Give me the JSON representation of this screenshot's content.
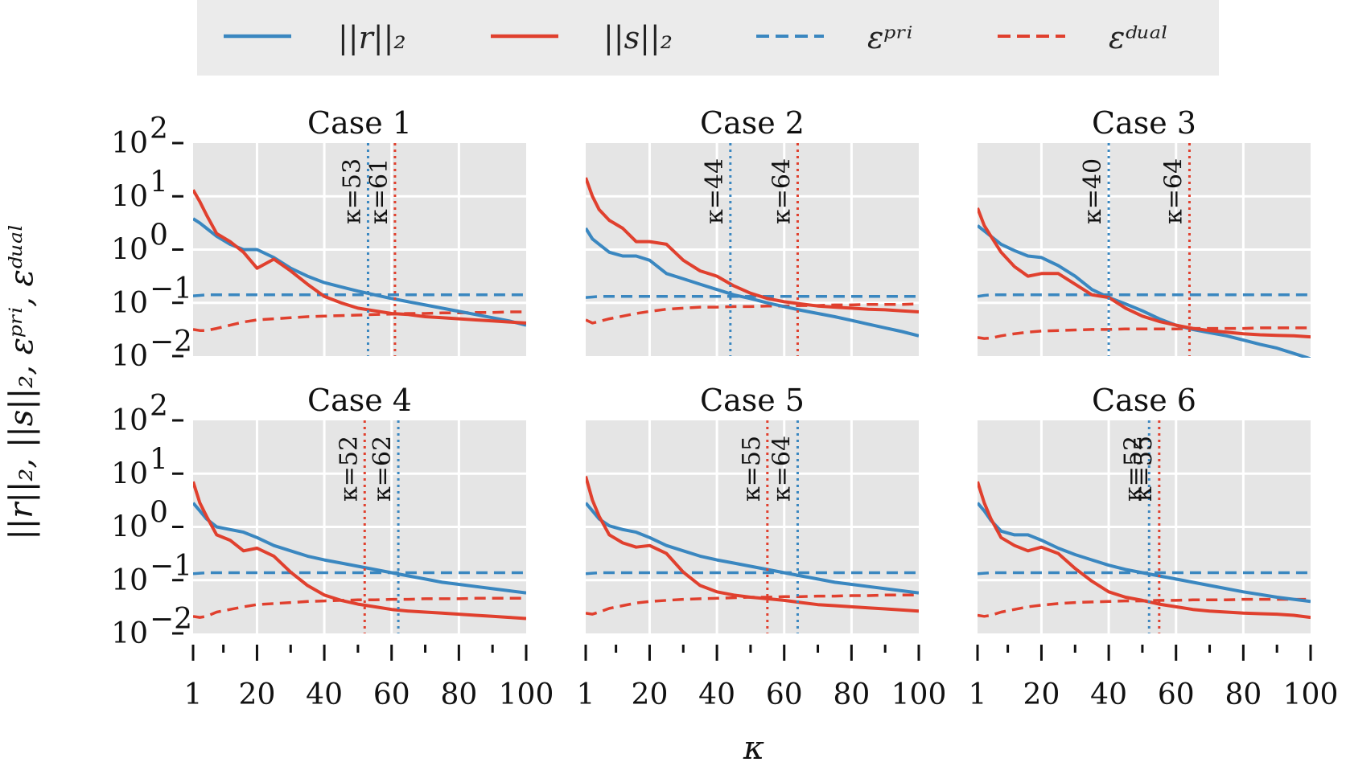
{
  "chart_data": {
    "type": "line",
    "legend": {
      "placement": "top",
      "entries": [
        {
          "label": "||r||₂",
          "color": "#3a87c0",
          "dash": "solid"
        },
        {
          "label": "||s||₂",
          "color": "#e0402e",
          "dash": "solid"
        },
        {
          "label": "εᵖʳⁱ",
          "color": "#3a87c0",
          "dash": "dashed"
        },
        {
          "label": "εᵈᵘᵃˡ",
          "color": "#e0402e",
          "dash": "dashed"
        }
      ]
    },
    "xlabel": "κ",
    "ylabel": "||r||₂, ||s||₂, εᵖʳⁱ, εᵈᵘᵃˡ",
    "xlim": [
      1,
      100
    ],
    "ylim_log10": [
      -2,
      2
    ],
    "yscale": "log",
    "grid": true,
    "x_ticks": [
      "1",
      "20",
      "40",
      "60",
      "80",
      "100"
    ],
    "x_tick_values": [
      1,
      20,
      40,
      60,
      80,
      100
    ],
    "y_ticks": [
      "10",
      "10",
      "10",
      "10",
      "10"
    ],
    "y_tick_exponents": [
      "2",
      "1",
      "0",
      "−1",
      "−2"
    ],
    "y_tick_log10": [
      2,
      1,
      0,
      -1,
      -2
    ],
    "colors": {
      "blue": "#3a87c0",
      "red": "#e0402e",
      "panel_bg": "#e5e5e5",
      "legend_bg": "#ebebeb"
    },
    "panels": [
      {
        "title": "Case 1",
        "x": [
          1,
          3,
          5,
          8,
          12,
          16,
          20,
          25,
          30,
          35,
          40,
          45,
          50,
          55,
          60,
          65,
          70,
          75,
          80,
          85,
          90,
          95,
          100
        ],
        "r": [
          0.58,
          0.5,
          0.4,
          0.25,
          0.1,
          0.0,
          0.0,
          -0.15,
          -0.35,
          -0.5,
          -0.62,
          -0.7,
          -0.78,
          -0.85,
          -0.92,
          -0.98,
          -1.04,
          -1.1,
          -1.16,
          -1.22,
          -1.28,
          -1.34,
          -1.42
        ],
        "s": [
          1.12,
          0.9,
          0.65,
          0.3,
          0.15,
          -0.05,
          -0.35,
          -0.18,
          -0.4,
          -0.65,
          -0.88,
          -1.0,
          -1.1,
          -1.15,
          -1.2,
          -1.22,
          -1.26,
          -1.28,
          -1.3,
          -1.32,
          -1.34,
          -1.36,
          -1.38
        ],
        "eps_pri": [
          -0.87,
          -0.86,
          -0.85,
          -0.85,
          -0.85,
          -0.85,
          -0.85,
          -0.85,
          -0.85,
          -0.85,
          -0.85,
          -0.85,
          -0.85,
          -0.85,
          -0.85,
          -0.85,
          -0.85,
          -0.85,
          -0.85,
          -0.85,
          -0.85,
          -0.85,
          -0.85
        ],
        "eps_dual": [
          -1.5,
          -1.52,
          -1.52,
          -1.48,
          -1.42,
          -1.36,
          -1.32,
          -1.3,
          -1.28,
          -1.26,
          -1.25,
          -1.24,
          -1.23,
          -1.22,
          -1.21,
          -1.2,
          -1.2,
          -1.19,
          -1.19,
          -1.18,
          -1.18,
          -1.17,
          -1.17
        ],
        "vlines": [
          {
            "kappa": 53,
            "label": "κ=53",
            "color": "#3a87c0"
          },
          {
            "kappa": 61,
            "label": "κ=61",
            "color": "#e0402e"
          }
        ]
      },
      {
        "title": "Case 2",
        "x": [
          1,
          3,
          5,
          8,
          12,
          16,
          20,
          25,
          30,
          35,
          40,
          45,
          50,
          55,
          60,
          65,
          70,
          75,
          80,
          85,
          90,
          95,
          100
        ],
        "r": [
          0.4,
          0.2,
          0.1,
          -0.05,
          -0.12,
          -0.12,
          -0.2,
          -0.45,
          -0.55,
          -0.65,
          -0.75,
          -0.85,
          -0.92,
          -1.0,
          -1.07,
          -1.14,
          -1.2,
          -1.26,
          -1.33,
          -1.4,
          -1.47,
          -1.54,
          -1.62
        ],
        "s": [
          1.35,
          1.0,
          0.75,
          0.55,
          0.4,
          0.15,
          0.15,
          0.1,
          -0.2,
          -0.4,
          -0.5,
          -0.68,
          -0.82,
          -0.92,
          -0.98,
          -1.02,
          -1.06,
          -1.08,
          -1.1,
          -1.12,
          -1.13,
          -1.15,
          -1.17
        ],
        "eps_pri": [
          -0.9,
          -0.89,
          -0.88,
          -0.88,
          -0.88,
          -0.88,
          -0.88,
          -0.88,
          -0.88,
          -0.88,
          -0.88,
          -0.88,
          -0.88,
          -0.88,
          -0.88,
          -0.88,
          -0.88,
          -0.88,
          -0.88,
          -0.88,
          -0.88,
          -0.88,
          -0.88
        ],
        "eps_dual": [
          -1.32,
          -1.38,
          -1.35,
          -1.3,
          -1.25,
          -1.2,
          -1.16,
          -1.12,
          -1.1,
          -1.08,
          -1.08,
          -1.07,
          -1.07,
          -1.06,
          -1.06,
          -1.05,
          -1.05,
          -1.04,
          -1.04,
          -1.03,
          -1.03,
          -1.03,
          -1.02
        ],
        "vlines": [
          {
            "kappa": 44,
            "label": "κ=44",
            "color": "#3a87c0"
          },
          {
            "kappa": 64,
            "label": "κ=64",
            "color": "#e0402e"
          }
        ]
      },
      {
        "title": "Case 3",
        "x": [
          1,
          3,
          5,
          8,
          12,
          16,
          20,
          25,
          30,
          35,
          40,
          45,
          50,
          55,
          60,
          65,
          70,
          75,
          80,
          85,
          90,
          95,
          100
        ],
        "r": [
          0.45,
          0.35,
          0.25,
          0.1,
          -0.02,
          -0.12,
          -0.15,
          -0.3,
          -0.5,
          -0.75,
          -0.9,
          -1.02,
          -1.15,
          -1.3,
          -1.42,
          -1.5,
          -1.56,
          -1.62,
          -1.7,
          -1.78,
          -1.85,
          -1.95,
          -2.05
        ],
        "s": [
          0.78,
          0.45,
          0.25,
          -0.05,
          -0.32,
          -0.5,
          -0.45,
          -0.45,
          -0.65,
          -0.85,
          -0.9,
          -1.1,
          -1.25,
          -1.35,
          -1.42,
          -1.48,
          -1.52,
          -1.55,
          -1.58,
          -1.6,
          -1.61,
          -1.62,
          -1.64
        ],
        "eps_pri": [
          -0.88,
          -0.86,
          -0.85,
          -0.85,
          -0.85,
          -0.85,
          -0.85,
          -0.85,
          -0.85,
          -0.85,
          -0.85,
          -0.85,
          -0.85,
          -0.85,
          -0.85,
          -0.85,
          -0.85,
          -0.85,
          -0.85,
          -0.85,
          -0.85,
          -0.85,
          -0.85
        ],
        "eps_dual": [
          -1.65,
          -1.67,
          -1.66,
          -1.62,
          -1.58,
          -1.55,
          -1.53,
          -1.52,
          -1.51,
          -1.5,
          -1.5,
          -1.49,
          -1.49,
          -1.49,
          -1.49,
          -1.48,
          -1.48,
          -1.48,
          -1.48,
          -1.47,
          -1.47,
          -1.47,
          -1.47
        ],
        "vlines": [
          {
            "kappa": 40,
            "label": "κ=40",
            "color": "#3a87c0"
          },
          {
            "kappa": 64,
            "label": "κ=64",
            "color": "#e0402e"
          }
        ]
      },
      {
        "title": "Case 4",
        "x": [
          1,
          3,
          5,
          8,
          12,
          16,
          20,
          25,
          30,
          35,
          40,
          45,
          50,
          55,
          60,
          65,
          70,
          75,
          80,
          85,
          90,
          95,
          100
        ],
        "r": [
          0.45,
          0.3,
          0.15,
          0.0,
          -0.05,
          -0.1,
          -0.2,
          -0.35,
          -0.45,
          -0.55,
          -0.62,
          -0.68,
          -0.74,
          -0.8,
          -0.86,
          -0.92,
          -0.98,
          -1.04,
          -1.08,
          -1.12,
          -1.16,
          -1.2,
          -1.24
        ],
        "s": [
          0.85,
          0.45,
          0.2,
          -0.15,
          -0.25,
          -0.45,
          -0.4,
          -0.55,
          -0.85,
          -1.1,
          -1.28,
          -1.38,
          -1.45,
          -1.5,
          -1.55,
          -1.58,
          -1.6,
          -1.62,
          -1.64,
          -1.66,
          -1.68,
          -1.7,
          -1.72
        ],
        "eps_pri": [
          -0.88,
          -0.87,
          -0.86,
          -0.86,
          -0.86,
          -0.86,
          -0.86,
          -0.86,
          -0.86,
          -0.86,
          -0.86,
          -0.86,
          -0.86,
          -0.86,
          -0.86,
          -0.86,
          -0.86,
          -0.86,
          -0.86,
          -0.86,
          -0.86,
          -0.86,
          -0.86
        ],
        "eps_dual": [
          -1.68,
          -1.7,
          -1.68,
          -1.6,
          -1.55,
          -1.5,
          -1.46,
          -1.44,
          -1.42,
          -1.4,
          -1.39,
          -1.38,
          -1.37,
          -1.37,
          -1.36,
          -1.36,
          -1.35,
          -1.35,
          -1.35,
          -1.34,
          -1.34,
          -1.34,
          -1.34
        ],
        "vlines": [
          {
            "kappa": 52,
            "label": "κ=52",
            "color": "#e0402e"
          },
          {
            "kappa": 62,
            "label": "κ=62",
            "color": "#3a87c0"
          }
        ]
      },
      {
        "title": "Case 5",
        "x": [
          1,
          3,
          5,
          8,
          12,
          16,
          20,
          25,
          30,
          35,
          40,
          45,
          50,
          55,
          60,
          65,
          70,
          75,
          80,
          85,
          90,
          95,
          100
        ],
        "r": [
          0.45,
          0.3,
          0.15,
          0.02,
          -0.05,
          -0.1,
          -0.2,
          -0.35,
          -0.45,
          -0.55,
          -0.62,
          -0.68,
          -0.74,
          -0.8,
          -0.86,
          -0.92,
          -0.98,
          -1.04,
          -1.08,
          -1.12,
          -1.16,
          -1.2,
          -1.24
        ],
        "s": [
          0.95,
          0.5,
          0.2,
          -0.15,
          -0.3,
          -0.38,
          -0.35,
          -0.5,
          -0.85,
          -1.1,
          -1.22,
          -1.28,
          -1.32,
          -1.35,
          -1.38,
          -1.42,
          -1.46,
          -1.48,
          -1.5,
          -1.52,
          -1.54,
          -1.56,
          -1.58
        ],
        "eps_pri": [
          -0.88,
          -0.87,
          -0.86,
          -0.86,
          -0.86,
          -0.86,
          -0.86,
          -0.86,
          -0.86,
          -0.86,
          -0.86,
          -0.86,
          -0.86,
          -0.86,
          -0.86,
          -0.86,
          -0.86,
          -0.86,
          -0.86,
          -0.86,
          -0.86,
          -0.86,
          -0.86
        ],
        "eps_dual": [
          -1.62,
          -1.64,
          -1.6,
          -1.53,
          -1.48,
          -1.43,
          -1.4,
          -1.38,
          -1.36,
          -1.35,
          -1.34,
          -1.33,
          -1.32,
          -1.32,
          -1.31,
          -1.31,
          -1.3,
          -1.3,
          -1.29,
          -1.29,
          -1.28,
          -1.28,
          -1.28
        ],
        "vlines": [
          {
            "kappa": 55,
            "label": "κ=55",
            "color": "#e0402e"
          },
          {
            "kappa": 64,
            "label": "κ=64",
            "color": "#3a87c0"
          }
        ]
      },
      {
        "title": "Case 6",
        "x": [
          1,
          3,
          5,
          8,
          12,
          16,
          20,
          25,
          30,
          35,
          40,
          45,
          50,
          55,
          60,
          65,
          70,
          75,
          80,
          85,
          90,
          95,
          100
        ],
        "r": [
          0.45,
          0.3,
          0.12,
          -0.08,
          -0.15,
          -0.15,
          -0.25,
          -0.4,
          -0.52,
          -0.62,
          -0.72,
          -0.8,
          -0.86,
          -0.92,
          -0.98,
          -1.04,
          -1.1,
          -1.16,
          -1.22,
          -1.27,
          -1.32,
          -1.36,
          -1.4
        ],
        "s": [
          0.85,
          0.45,
          0.15,
          -0.2,
          -0.35,
          -0.45,
          -0.38,
          -0.5,
          -0.78,
          -1.02,
          -1.22,
          -1.32,
          -1.38,
          -1.45,
          -1.5,
          -1.55,
          -1.58,
          -1.6,
          -1.62,
          -1.63,
          -1.64,
          -1.66,
          -1.7
        ],
        "eps_pri": [
          -0.88,
          -0.87,
          -0.86,
          -0.86,
          -0.86,
          -0.86,
          -0.86,
          -0.86,
          -0.86,
          -0.86,
          -0.86,
          -0.86,
          -0.86,
          -0.86,
          -0.86,
          -0.86,
          -0.86,
          -0.86,
          -0.86,
          -0.86,
          -0.86,
          -0.86,
          -0.86
        ],
        "eps_dual": [
          -1.66,
          -1.68,
          -1.66,
          -1.6,
          -1.55,
          -1.5,
          -1.47,
          -1.44,
          -1.42,
          -1.41,
          -1.4,
          -1.39,
          -1.39,
          -1.38,
          -1.38,
          -1.37,
          -1.37,
          -1.37,
          -1.36,
          -1.36,
          -1.36,
          -1.36,
          -1.36
        ],
        "vlines": [
          {
            "kappa": 52,
            "label": "κ=52",
            "color": "#3a87c0"
          },
          {
            "kappa": 55,
            "label": "κ=55",
            "color": "#e0402e"
          }
        ]
      }
    ]
  }
}
